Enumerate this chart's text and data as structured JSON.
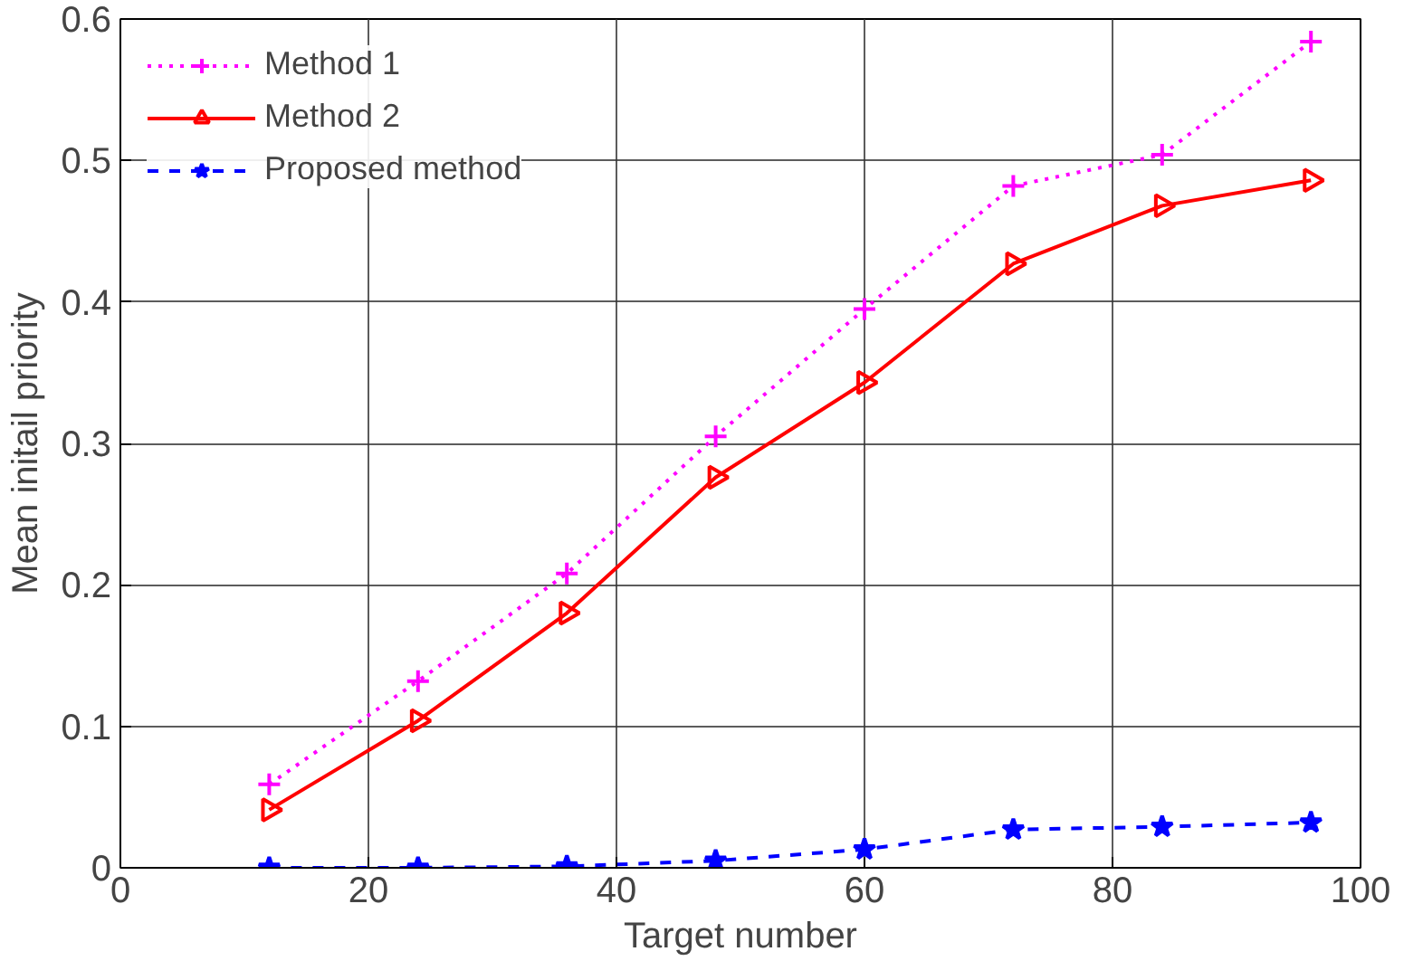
{
  "chart_data": {
    "type": "line",
    "xlabel": "Target number",
    "ylabel": "Mean initail priority",
    "x": [
      12,
      24,
      36,
      48,
      60,
      72,
      84,
      96
    ],
    "xlim": [
      0,
      100
    ],
    "xticks": [
      0,
      20,
      40,
      60,
      80,
      100
    ],
    "ylim": [
      0,
      0.6
    ],
    "yticks": [
      0,
      0.1,
      0.2,
      0.3,
      0.4,
      0.5,
      0.6
    ],
    "grid": true,
    "legend": "top left",
    "series": [
      {
        "name": "Method 1",
        "color": "#ff00ff",
        "marker": "cross",
        "line_style": "dotted",
        "values": [
          0.059,
          0.132,
          0.208,
          0.305,
          0.395,
          0.482,
          0.504,
          0.584
        ]
      },
      {
        "name": "Method 2",
        "color": "#ff0000",
        "marker": "triangle",
        "line_style": "solid",
        "values": [
          0.041,
          0.104,
          0.18,
          0.276,
          0.343,
          0.427,
          0.468,
          0.486
        ]
      },
      {
        "name": "Proposed method",
        "color": "#0000ff",
        "marker": "star",
        "line_style": "dashed",
        "values": [
          0,
          0,
          0.001,
          0.005,
          0.013,
          0.027,
          0.029,
          0.032
        ]
      }
    ]
  }
}
